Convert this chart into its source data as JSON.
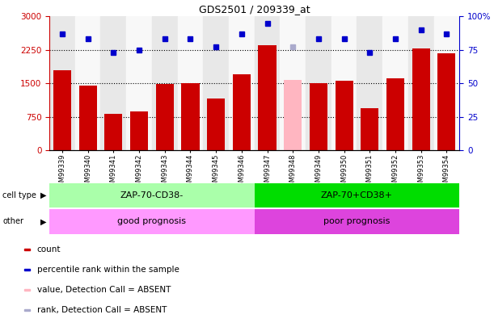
{
  "title": "GDS2501 / 209339_at",
  "samples": [
    "GSM99339",
    "GSM99340",
    "GSM99341",
    "GSM99342",
    "GSM99343",
    "GSM99344",
    "GSM99345",
    "GSM99346",
    "GSM99347",
    "GSM99348",
    "GSM99349",
    "GSM99350",
    "GSM99351",
    "GSM99352",
    "GSM99353",
    "GSM99354"
  ],
  "counts": [
    1800,
    1450,
    820,
    870,
    1480,
    1500,
    1160,
    1700,
    2350,
    1580,
    1510,
    1560,
    950,
    1620,
    2280,
    2180
  ],
  "absent_flags": [
    false,
    false,
    false,
    false,
    false,
    false,
    false,
    false,
    false,
    true,
    false,
    false,
    false,
    false,
    false,
    false
  ],
  "ranks": [
    87,
    83,
    73,
    75,
    83,
    83,
    77,
    87,
    95,
    77,
    83,
    83,
    73,
    83,
    90,
    87
  ],
  "rank_absent": [
    false,
    false,
    false,
    false,
    false,
    false,
    false,
    false,
    false,
    true,
    false,
    false,
    false,
    false,
    false,
    false
  ],
  "cell_type_groups": [
    {
      "label": "ZAP-70-CD38-",
      "start": 0,
      "end": 8,
      "color": "#AAFFAA"
    },
    {
      "label": "ZAP-70+CD38+",
      "start": 8,
      "end": 16,
      "color": "#00DD00"
    }
  ],
  "other_groups": [
    {
      "label": "good prognosis",
      "start": 0,
      "end": 8,
      "color": "#FF99FF"
    },
    {
      "label": "poor prognosis",
      "start": 8,
      "end": 16,
      "color": "#DD44DD"
    }
  ],
  "bar_color_normal": "#CC0000",
  "bar_color_absent": "#FFB6C1",
  "dot_color_normal": "#0000CC",
  "dot_color_absent": "#AAAACC",
  "ylim_left": [
    0,
    3000
  ],
  "ylim_right": [
    0,
    100
  ],
  "yticks_left": [
    0,
    750,
    1500,
    2250,
    3000
  ],
  "yticks_right": [
    0,
    25,
    50,
    75,
    100
  ],
  "ytick_labels_right": [
    "0",
    "25",
    "50",
    "75",
    "100%"
  ],
  "grid_lines": [
    750,
    1500,
    2250
  ],
  "col_bg_even": "#E8E8E8",
  "col_bg_odd": "#F8F8F8",
  "legend_items": [
    {
      "color": "#CC0000",
      "label": "count"
    },
    {
      "color": "#0000CC",
      "label": "percentile rank within the sample"
    },
    {
      "color": "#FFB6C1",
      "label": "value, Detection Call = ABSENT"
    },
    {
      "color": "#AAAACC",
      "label": "rank, Detection Call = ABSENT"
    }
  ]
}
